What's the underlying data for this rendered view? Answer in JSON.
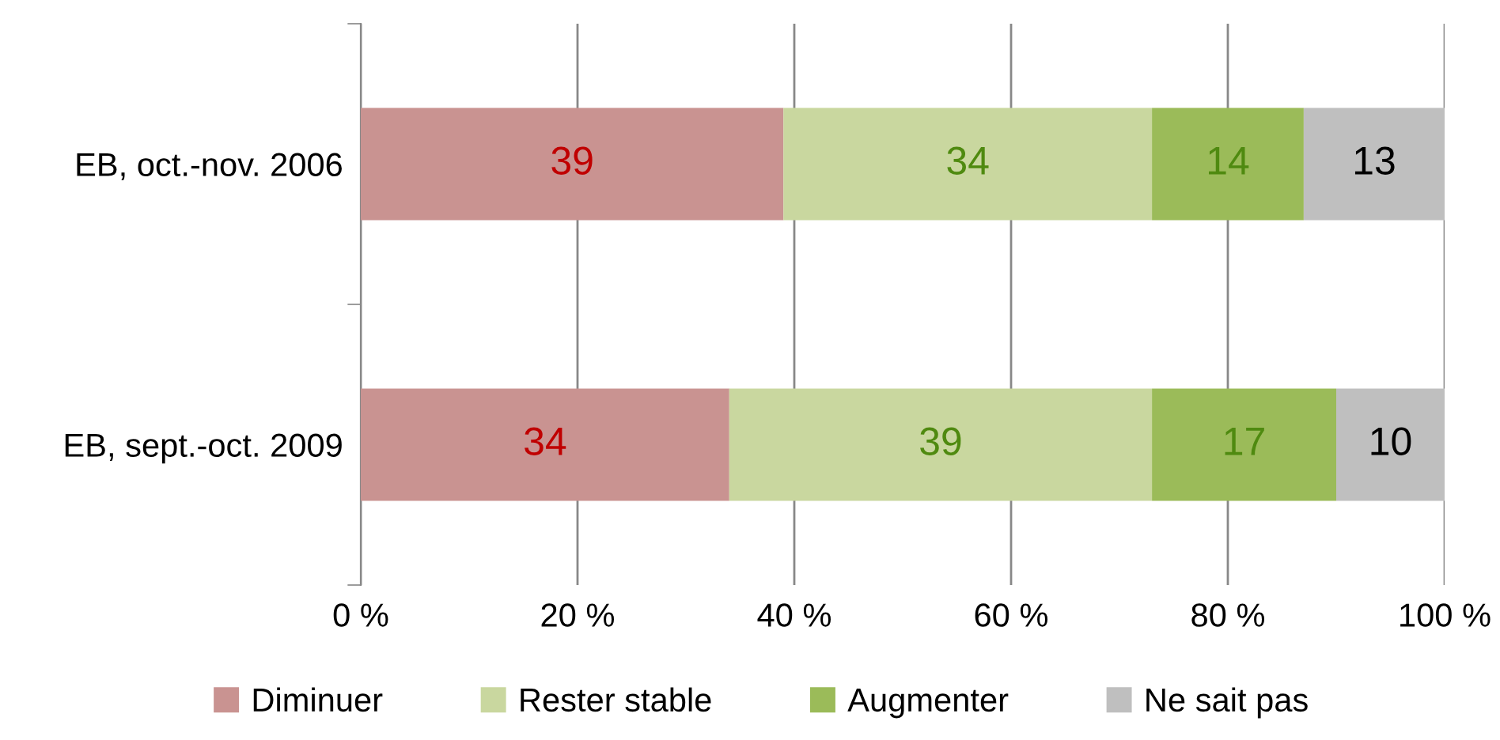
{
  "chart_data": {
    "type": "bar",
    "orientation": "horizontal",
    "stacked": true,
    "categories": [
      "EB, oct.-nov. 2006",
      "EB, sept.-oct. 2009"
    ],
    "series": [
      {
        "name": "Diminuer",
        "color": "#c99391",
        "values": [
          39,
          34
        ]
      },
      {
        "name": "Rester stable",
        "color": "#c9d79f",
        "values": [
          34,
          39
        ]
      },
      {
        "name": "Augmenter",
        "color": "#9bbb59",
        "values": [
          14,
          17
        ]
      },
      {
        "name": "Ne sait pas",
        "color": "#bfbfbf",
        "values": [
          13,
          10
        ]
      }
    ],
    "xlim": [
      0,
      100
    ],
    "xticks": [
      {
        "value": 0,
        "label": "0 %"
      },
      {
        "value": 20,
        "label": "20 %"
      },
      {
        "value": 40,
        "label": "40 %"
      },
      {
        "value": 60,
        "label": "60 %"
      },
      {
        "value": 80,
        "label": "80 %"
      },
      {
        "value": 100,
        "label": "100 %"
      }
    ],
    "grid": "x",
    "legend": "bottom",
    "data_labels": true
  }
}
